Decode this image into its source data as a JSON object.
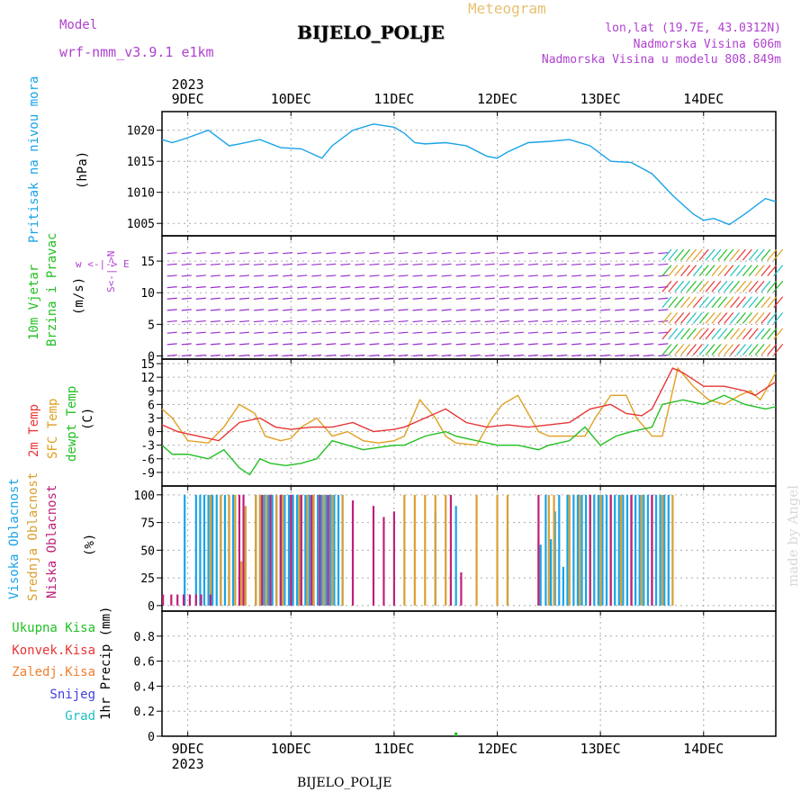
{
  "header": {
    "model_label": "Model",
    "model_name": "wrf-nmm_v3.9.1 e1km",
    "title": "BIJELO_POLJE",
    "meteogram": "Meteogram",
    "lonlat": "lon,lat (19.7E, 43.0312N)",
    "altitude": "Nadmorska Visina 606m",
    "model_altitude": "Nadmorska Visina u modelu 808.849m",
    "footer_title": "BIJELO_POLJE",
    "watermark": "made by Angel"
  },
  "colors": {
    "pressure": "#1aa3e8",
    "temp2m": "#e83535",
    "sfc": "#e0a020",
    "dewpt": "#22c022",
    "high_cloud": "#1aa3e8",
    "mid_cloud": "#d9a030",
    "low_cloud": "#c0207a",
    "label_purple": "#b040d0"
  },
  "x_axis": {
    "year": "2023",
    "day_labels": [
      "9DEC",
      "10DEC",
      "11DEC",
      "12DEC",
      "13DEC",
      "14DEC"
    ],
    "day_positions": [
      0.5,
      1.5,
      2.5,
      3.5,
      4.5,
      5.5
    ],
    "range": [
      0.25,
      6.2
    ]
  },
  "panels": {
    "pressure": {
      "ylabel": "Pritisak na nivou mora",
      "unit": "(hPa)",
      "ylim": [
        1003,
        1023
      ],
      "ticks": [
        1005,
        1010,
        1015,
        1020
      ]
    },
    "wind": {
      "ylabel1": "10m Vjetar",
      "ylabel2": "Brzina i Pravac",
      "unit": "(m/s)",
      "compass": "w <-|-> E",
      "compass_ns": "S<-|->N",
      "ylim": [
        -0.5,
        19
      ],
      "ticks": [
        0,
        5,
        10,
        15
      ]
    },
    "temp": {
      "ylabel1": "2m Temp",
      "ylabel2": "SFC Temp",
      "ylabel3": "dewpt Temp",
      "unit": "(C)",
      "ylim": [
        -12,
        16
      ],
      "ticks": [
        -9,
        -6,
        -3,
        0,
        3,
        6,
        9,
        12,
        15
      ]
    },
    "cloud": {
      "ylabel1": "Visoka Oblacnost",
      "ylabel2": "Srednja Oblacnost",
      "ylabel3": "Niska Oblacnost",
      "unit": "(%)",
      "ylim": [
        -5,
        108
      ],
      "ticks": [
        0,
        25,
        50,
        75,
        100
      ]
    },
    "precip": {
      "ylabel": "1hr Precip (mm)",
      "legend": [
        "Ukupna Kisa",
        "Konvek.Kisa",
        "Zaledj.Kisa",
        "Snijeg",
        "Grad"
      ],
      "legend_colors": [
        "#22c022",
        "#e83535",
        "#f08030",
        "#4040e0",
        "#20c0c0"
      ],
      "ylim": [
        0,
        1.0
      ],
      "ticks": [
        0,
        0.2,
        0.4,
        0.6,
        0.8
      ]
    }
  },
  "chart_data": [
    {
      "type": "line",
      "name": "pressure",
      "x": [
        0.25,
        0.35,
        0.5,
        0.7,
        0.9,
        1.0,
        1.2,
        1.4,
        1.6,
        1.8,
        1.9,
        2.1,
        2.3,
        2.5,
        2.6,
        2.7,
        2.8,
        3.0,
        3.2,
        3.4,
        3.5,
        3.6,
        3.8,
        4.0,
        4.2,
        4.4,
        4.6,
        4.8,
        5.0,
        5.2,
        5.4,
        5.5,
        5.6,
        5.75,
        5.9,
        6.1,
        6.2
      ],
      "y": [
        1018.5,
        1018,
        1018.8,
        1020,
        1017.5,
        1017.8,
        1018.5,
        1017.2,
        1017,
        1015.5,
        1017.5,
        1020,
        1021,
        1020.5,
        1019.5,
        1018,
        1017.8,
        1018,
        1017.5,
        1015.8,
        1015.5,
        1016.5,
        1018,
        1018.2,
        1018.5,
        1017.5,
        1015,
        1014.8,
        1013,
        1009.5,
        1006.5,
        1005.5,
        1005.8,
        1004.8,
        1006.5,
        1009,
        1008.5
      ]
    },
    {
      "type": "line",
      "name": "2m Temp",
      "x": [
        0.25,
        0.4,
        0.6,
        0.8,
        1.0,
        1.2,
        1.35,
        1.5,
        1.7,
        1.9,
        2.1,
        2.3,
        2.5,
        2.6,
        2.8,
        3.0,
        3.2,
        3.4,
        3.6,
        3.8,
        4.0,
        4.2,
        4.4,
        4.6,
        4.75,
        4.9,
        5.0,
        5.2,
        5.3,
        5.5,
        5.7,
        5.9,
        6.0,
        6.2
      ],
      "y": [
        1.5,
        0,
        -1,
        -2,
        2,
        3,
        1,
        0.5,
        1,
        1,
        2,
        0,
        0.5,
        1,
        3,
        5,
        2,
        1,
        1.5,
        1,
        1.5,
        2,
        5,
        6,
        4,
        3.5,
        5,
        14,
        13,
        10,
        10,
        9,
        8,
        11
      ]
    },
    {
      "type": "line",
      "name": "SFC Temp",
      "x": [
        0.25,
        0.35,
        0.5,
        0.7,
        0.85,
        1.0,
        1.15,
        1.25,
        1.4,
        1.5,
        1.6,
        1.75,
        1.9,
        2.05,
        2.2,
        2.35,
        2.5,
        2.6,
        2.75,
        2.9,
        3.0,
        3.1,
        3.3,
        3.45,
        3.55,
        3.7,
        3.9,
        4.0,
        4.2,
        4.35,
        4.45,
        4.6,
        4.75,
        4.85,
        5.0,
        5.1,
        5.25,
        5.4,
        5.55,
        5.7,
        5.85,
        5.95,
        6.05,
        6.2
      ],
      "y": [
        5,
        3,
        -2,
        -2.5,
        1,
        6,
        4,
        -1,
        -2,
        -1.5,
        1,
        3,
        -1,
        0,
        -2,
        -2.5,
        -2,
        -1,
        7,
        3,
        -1,
        -2.5,
        -3,
        3,
        6,
        8,
        0,
        -1,
        -1,
        -1,
        3,
        8,
        8,
        3,
        -1,
        -1,
        14,
        10,
        7,
        6,
        8,
        9,
        7,
        13
      ]
    },
    {
      "type": "line",
      "name": "dewpt Temp",
      "x": [
        0.25,
        0.35,
        0.5,
        0.7,
        0.85,
        1.0,
        1.1,
        1.2,
        1.3,
        1.45,
        1.6,
        1.75,
        1.9,
        2.05,
        2.2,
        2.35,
        2.5,
        2.6,
        2.8,
        3.0,
        3.1,
        3.3,
        3.5,
        3.7,
        3.9,
        4.0,
        4.2,
        4.35,
        4.5,
        4.65,
        4.8,
        5.0,
        5.1,
        5.3,
        5.5,
        5.7,
        5.9,
        6.1,
        6.2
      ],
      "y": [
        -3,
        -5,
        -5,
        -6,
        -4,
        -8,
        -9.5,
        -6,
        -7,
        -7.5,
        -7,
        -6,
        -2,
        -3,
        -4,
        -3.5,
        -3,
        -3,
        -1,
        0,
        -1,
        -2,
        -3,
        -3,
        -4,
        -3,
        -2,
        1,
        -3,
        -1,
        0,
        1,
        6,
        7,
        6,
        8,
        6,
        5,
        5.5
      ]
    },
    {
      "type": "bar",
      "name": "cloud",
      "high_x": [
        0.47,
        0.58,
        0.62,
        0.66,
        0.7,
        0.74,
        0.78,
        0.82,
        0.86,
        0.9,
        0.94,
        1.16,
        1.2,
        1.24,
        1.28,
        1.32,
        1.36,
        1.4,
        1.44,
        1.48,
        1.52,
        1.56,
        1.6,
        1.64,
        1.68,
        1.72,
        1.76,
        1.8,
        1.84,
        1.88,
        1.92,
        1.96,
        2.0,
        2.9,
        3.1,
        3.6,
        3.92,
        3.97,
        4.02,
        4.06,
        4.1,
        4.14,
        4.18,
        4.24,
        4.28,
        4.32,
        4.36,
        4.4,
        4.44,
        4.48,
        4.52,
        4.56,
        4.6,
        4.64,
        4.68,
        4.72,
        4.76,
        4.8,
        4.84,
        4.88,
        4.92,
        4.96,
        5.0,
        5.04,
        5.08,
        5.12,
        5.16
      ],
      "high_y": [
        100,
        100,
        100,
        100,
        100,
        100,
        100,
        100,
        100,
        100,
        100,
        100,
        100,
        100,
        100,
        100,
        100,
        100,
        100,
        100,
        100,
        100,
        100,
        100,
        100,
        100,
        100,
        100,
        100,
        100,
        100,
        100,
        100,
        85,
        90,
        70,
        55,
        100,
        60,
        85,
        100,
        35,
        100,
        100,
        100,
        100,
        100,
        100,
        100,
        100,
        100,
        100,
        100,
        100,
        100,
        100,
        100,
        100,
        100,
        100,
        100,
        100,
        100,
        100,
        100,
        100,
        100
      ],
      "mid_x": [
        0.72,
        0.82,
        0.9,
        0.96,
        1.02,
        1.06,
        1.16,
        1.2,
        1.26,
        1.3,
        1.36,
        1.42,
        1.5,
        1.58,
        1.66,
        1.72,
        1.82,
        1.9,
        2.0,
        2.6,
        2.7,
        2.8,
        2.9,
        3.0,
        3.05,
        3.3,
        3.5,
        3.6,
        3.9,
        4.0,
        4.05,
        4.2,
        4.3,
        4.4,
        4.5,
        4.6,
        4.7,
        4.8,
        4.9,
        5.0,
        5.1,
        5.2
      ],
      "mid_y": [
        100,
        100,
        100,
        100,
        40,
        90,
        100,
        100,
        100,
        100,
        100,
        100,
        100,
        100,
        100,
        100,
        100,
        100,
        100,
        100,
        100,
        100,
        100,
        100,
        30,
        100,
        100,
        100,
        60,
        100,
        100,
        100,
        100,
        100,
        100,
        100,
        100,
        100,
        100,
        100,
        100,
        100
      ],
      "low_x": [
        0.26,
        0.34,
        0.4,
        0.46,
        0.52,
        0.58,
        0.63,
        0.72,
        1.0,
        1.04,
        1.22,
        1.3,
        1.4,
        1.5,
        1.6,
        1.7,
        1.78,
        1.86,
        2.1,
        2.3,
        2.4,
        2.5,
        3.05,
        3.15,
        3.9,
        4.4,
        4.6,
        4.8,
        5.0
      ],
      "low_y": [
        10,
        10,
        10,
        10,
        10,
        10,
        10,
        10,
        100,
        100,
        100,
        100,
        100,
        100,
        100,
        100,
        100,
        100,
        95,
        90,
        80,
        85,
        100,
        30,
        100,
        100,
        100,
        100,
        100
      ]
    },
    {
      "type": "bar",
      "name": "precip",
      "x": [
        3.1
      ],
      "y": [
        0.03
      ]
    }
  ]
}
